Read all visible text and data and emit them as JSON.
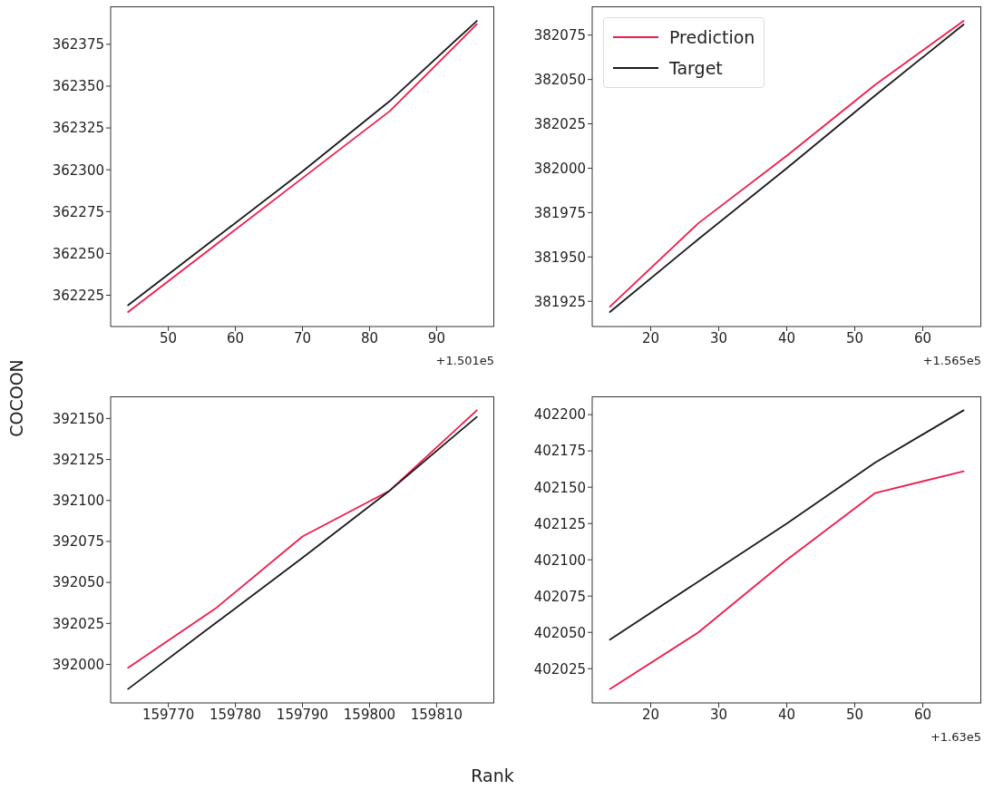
{
  "chart_data": [
    {
      "type": "line",
      "x": [
        44,
        57,
        70,
        83,
        96
      ],
      "series": [
        {
          "color": "#f2194b",
          "values": [
            362215,
            362255,
            362295,
            362335,
            362387
          ]
        },
        {
          "color": "#1a1a1a",
          "values": [
            362219,
            362259,
            362299,
            362341,
            362389
          ]
        }
      ],
      "xlim": [
        41.4,
        98.6
      ],
      "xticks": [
        50,
        60,
        70,
        80,
        90
      ],
      "ylim": [
        362206.3,
        362397.7
      ],
      "yticks": [
        362225,
        362250,
        362275,
        362300,
        362325,
        362350,
        362375
      ],
      "annotations": [
        "+1.501e5"
      ]
    },
    {
      "type": "line",
      "x": [
        14,
        27,
        40,
        53,
        66
      ],
      "series": [
        {
          "name": "Prediction",
          "color": "#f2194b",
          "values": [
            381922,
            381969,
            382007,
            382047,
            382083
          ]
        },
        {
          "name": "Target",
          "color": "#1a1a1a",
          "values": [
            381919,
            381960,
            382000,
            382041,
            382081
          ]
        }
      ],
      "xlim": [
        11.4,
        68.6
      ],
      "xticks": [
        20,
        30,
        40,
        50,
        60
      ],
      "ylim": [
        381910.8,
        382091.2
      ],
      "yticks": [
        381925,
        381950,
        381975,
        382000,
        382025,
        382050,
        382075
      ],
      "legend": "top left",
      "annotations": [
        "+1.565e5"
      ]
    },
    {
      "type": "line",
      "x": [
        159764,
        159777,
        159790,
        159803,
        159816
      ],
      "series": [
        {
          "color": "#f2194b",
          "values": [
            391998,
            392034,
            392078,
            392106,
            392155
          ]
        },
        {
          "color": "#1a1a1a",
          "values": [
            391985,
            392025,
            392065,
            392106,
            392151
          ]
        }
      ],
      "xlim": [
        159761.4,
        159818.6
      ],
      "xticks": [
        159770,
        159780,
        159790,
        159800,
        159810
      ],
      "ylim": [
        391976.5,
        392163.5
      ],
      "yticks": [
        392000,
        392025,
        392050,
        392075,
        392100,
        392125,
        392150
      ],
      "xlabel": "Rank",
      "ylabel": "COCOON"
    },
    {
      "type": "line",
      "x": [
        14,
        27,
        40,
        53,
        66
      ],
      "series": [
        {
          "color": "#f2194b",
          "values": [
            402011,
            402050,
            402100,
            402146,
            402161
          ]
        },
        {
          "color": "#1a1a1a",
          "values": [
            402045,
            402085,
            402125,
            402167,
            402203
          ]
        }
      ],
      "xlim": [
        11.4,
        68.6
      ],
      "xticks": [
        20,
        30,
        40,
        50,
        60
      ],
      "ylim": [
        402001.4,
        402212.6
      ],
      "yticks": [
        402025,
        402050,
        402075,
        402100,
        402125,
        402150,
        402175,
        402200
      ],
      "annotations": [
        "+1.63e5"
      ]
    }
  ]
}
